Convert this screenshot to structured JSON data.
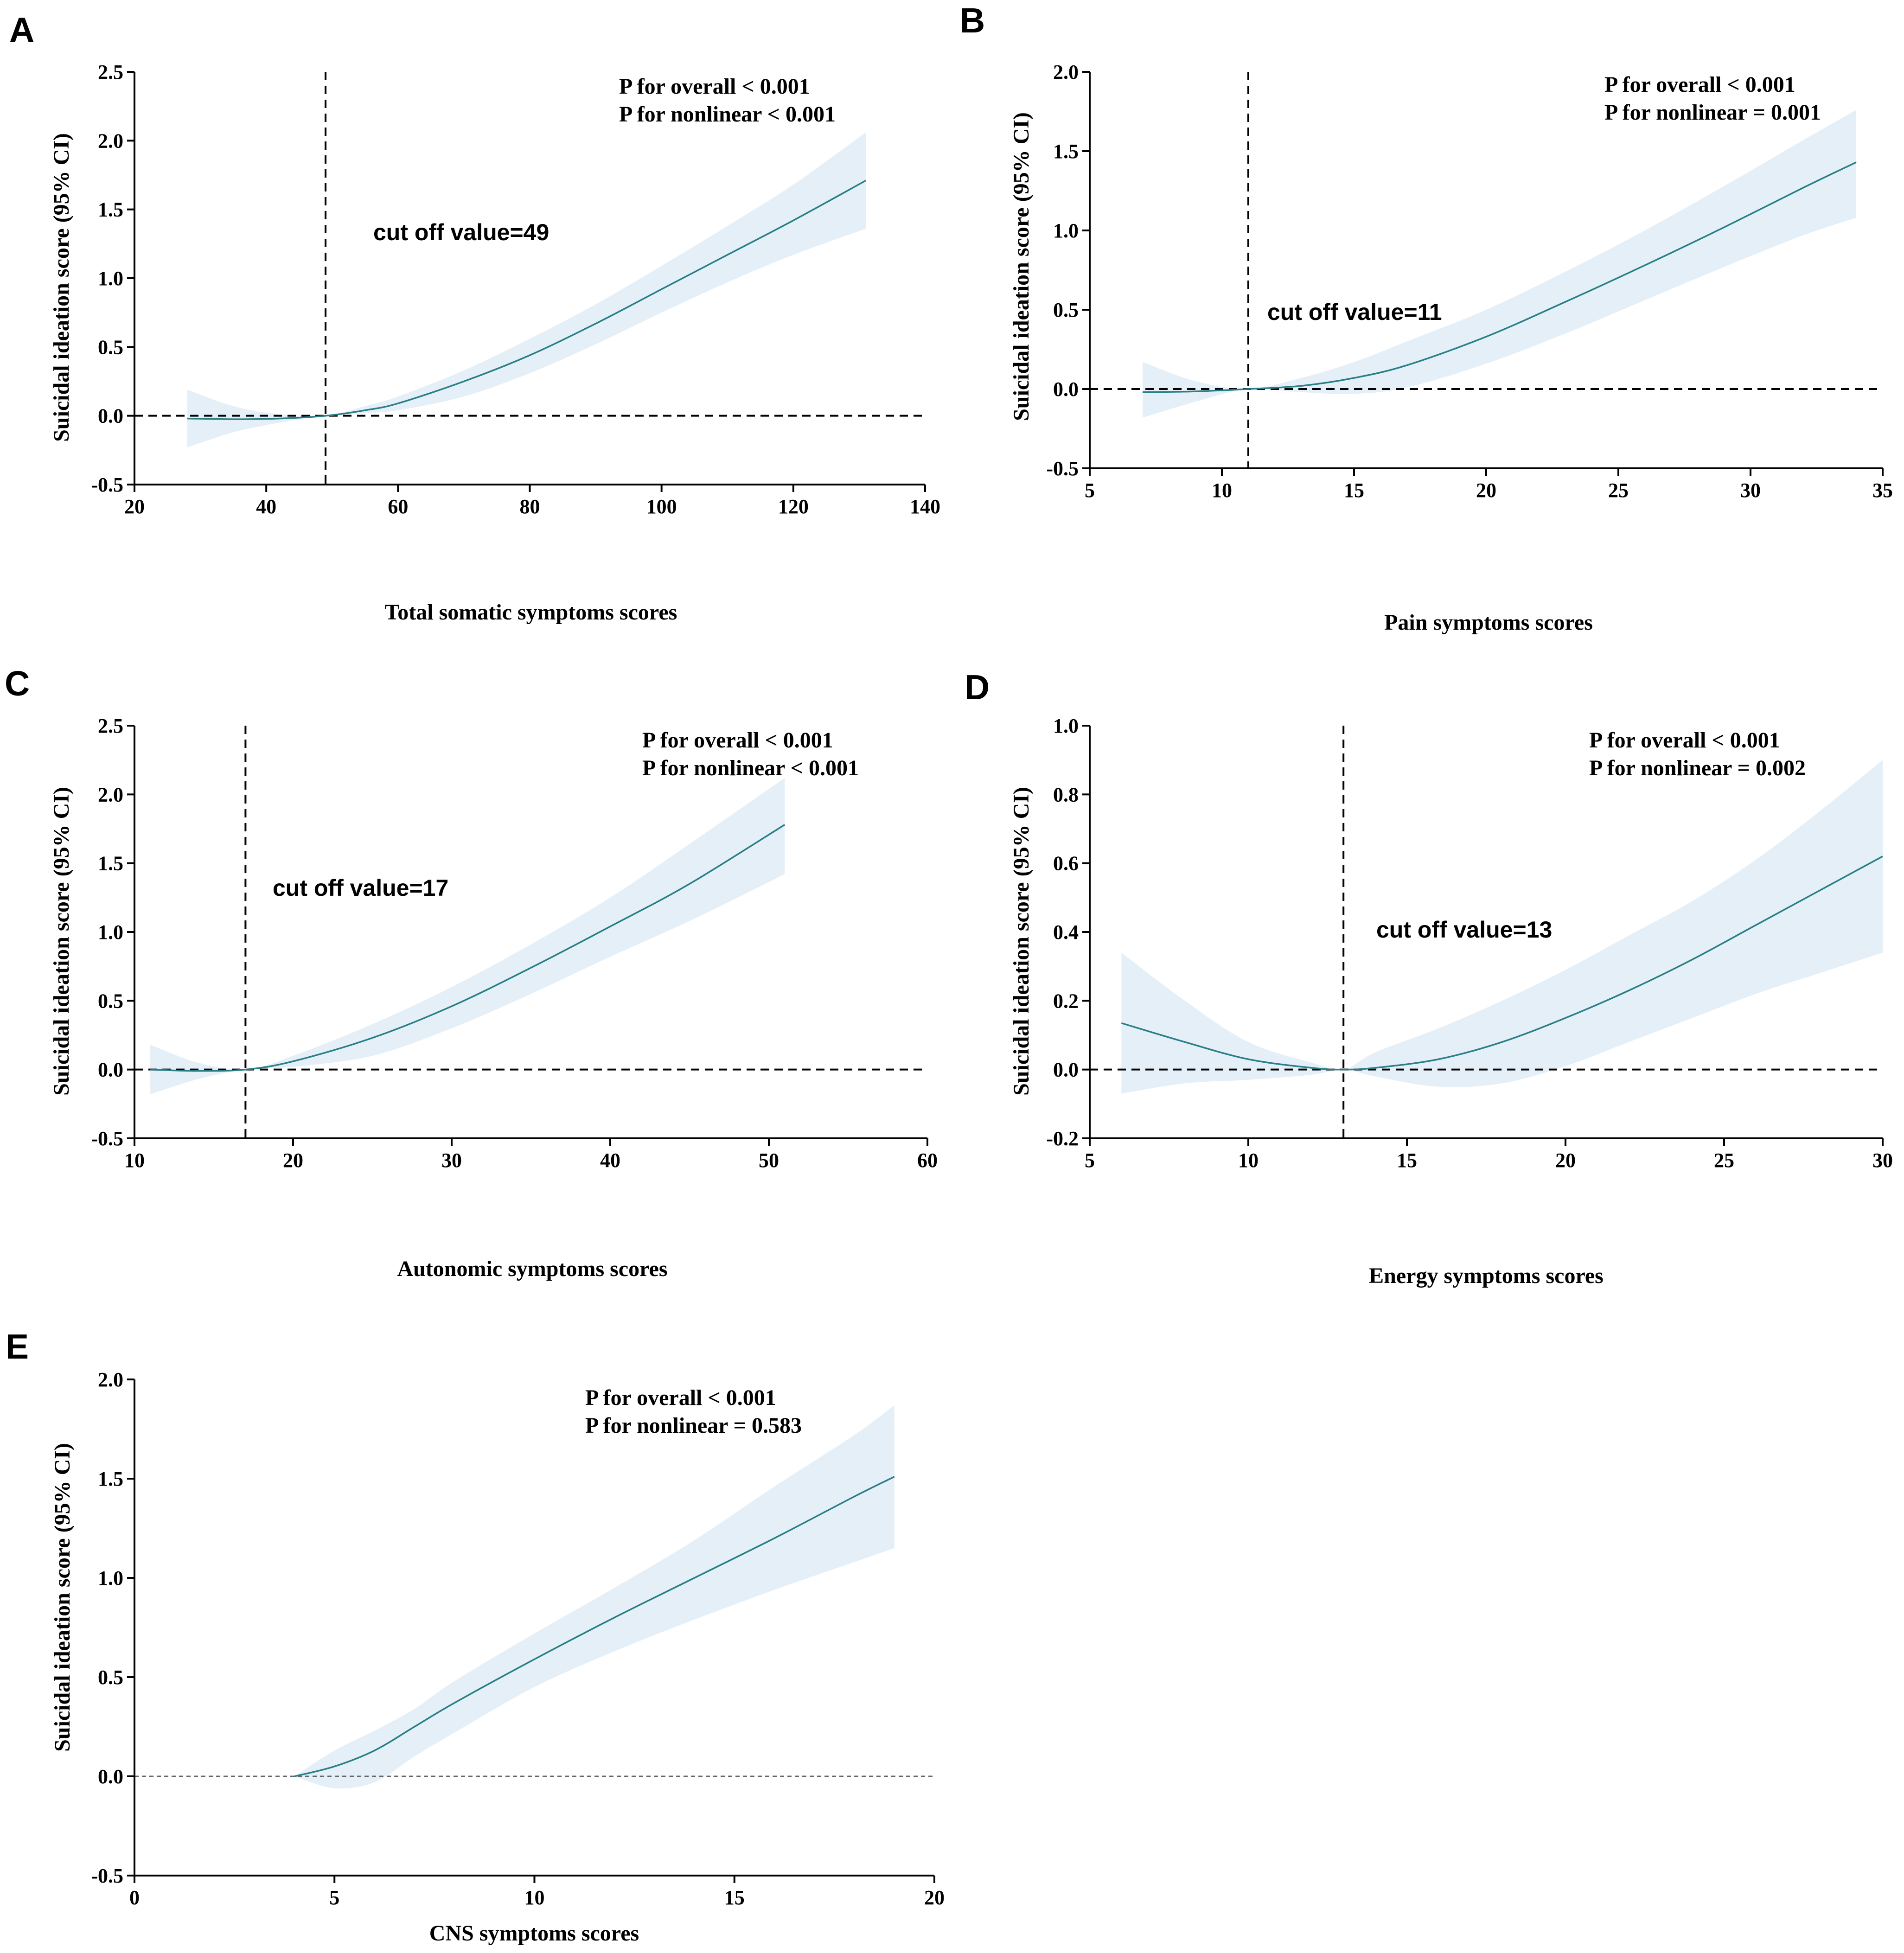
{
  "chart_data": [
    {
      "type": "line",
      "panel": "A",
      "title": "",
      "xlabel": "Total somatic symptoms scores",
      "ylabel": "Suicidal ideation score (95% CI)",
      "xlim": [
        20,
        140
      ],
      "ylim": [
        -0.5,
        2.5
      ],
      "xticks": [
        20,
        40,
        60,
        80,
        100,
        120,
        140
      ],
      "yticks": [
        -0.5,
        0.0,
        0.5,
        1.0,
        1.5,
        2.0,
        2.5
      ],
      "xtick_labels": [
        "20",
        "40",
        "60",
        "80",
        "100",
        "120",
        "140"
      ],
      "ytick_labels": [
        "-0.5",
        "0.0",
        "0.5",
        "1.0",
        "1.5",
        "2.0",
        "2.5"
      ],
      "reference_y": 0,
      "cutoff_x": 49,
      "cutoff_label": "cut off value=49",
      "p_overall": "P for overall < 0.001",
      "p_nonlinear": "P for nonlinear < 0.001",
      "series": [
        {
          "name": "estimate",
          "x": [
            28,
            35,
            42,
            49,
            55,
            60,
            70,
            80,
            90,
            100,
            110,
            120,
            131
          ],
          "y": [
            -0.02,
            -0.025,
            -0.02,
            0.0,
            0.04,
            0.09,
            0.25,
            0.44,
            0.67,
            0.92,
            1.17,
            1.42,
            1.71
          ],
          "lower": [
            -0.23,
            -0.12,
            -0.05,
            0.0,
            0.02,
            0.04,
            0.14,
            0.31,
            0.52,
            0.75,
            0.97,
            1.17,
            1.36
          ],
          "upper": [
            0.19,
            0.07,
            0.01,
            0.0,
            0.07,
            0.14,
            0.33,
            0.56,
            0.81,
            1.09,
            1.38,
            1.68,
            2.06
          ]
        }
      ]
    },
    {
      "type": "line",
      "panel": "B",
      "title": "",
      "xlabel": "Pain symptoms scores",
      "ylabel": "Suicidal ideation score (95% CI)",
      "xlim": [
        5,
        35
      ],
      "ylim": [
        -0.5,
        2.0
      ],
      "xticks": [
        5,
        10,
        15,
        20,
        25,
        30,
        35
      ],
      "yticks": [
        -0.5,
        0.0,
        0.5,
        1.0,
        1.5,
        2.0
      ],
      "xtick_labels": [
        "5",
        "10",
        "15",
        "20",
        "25",
        "30",
        "35"
      ],
      "ytick_labels": [
        "-0.5",
        "0.0",
        "0.5",
        "1.0",
        "1.5",
        "2.0"
      ],
      "reference_y": 0,
      "cutoff_x": 11,
      "cutoff_label": "cut off value=11",
      "p_overall": "P for overall < 0.001",
      "p_nonlinear": "P for nonlinear = 0.001",
      "series": [
        {
          "name": "estimate",
          "x": [
            7,
            9,
            11,
            13,
            15,
            17,
            20,
            23,
            26,
            29,
            32,
            34
          ],
          "y": [
            -0.02,
            -0.015,
            0.0,
            0.02,
            0.07,
            0.15,
            0.33,
            0.55,
            0.78,
            1.02,
            1.27,
            1.43
          ],
          "lower": [
            -0.18,
            -0.08,
            0.0,
            -0.02,
            -0.03,
            0.01,
            0.16,
            0.35,
            0.56,
            0.77,
            0.97,
            1.08
          ],
          "upper": [
            0.17,
            0.05,
            0.0,
            0.07,
            0.17,
            0.3,
            0.5,
            0.74,
            1.0,
            1.28,
            1.57,
            1.76
          ]
        }
      ]
    },
    {
      "type": "line",
      "panel": "C",
      "title": "",
      "xlabel": "Autonomic symptoms scores",
      "ylabel": "Suicidal ideation score (95% CI)",
      "xlim": [
        10,
        60
      ],
      "ylim": [
        -0.5,
        2.5
      ],
      "xticks": [
        10,
        20,
        30,
        40,
        50,
        60
      ],
      "yticks": [
        -0.5,
        0.0,
        0.5,
        1.0,
        1.5,
        2.0,
        2.5
      ],
      "xtick_labels": [
        "10",
        "20",
        "30",
        "40",
        "50",
        "60"
      ],
      "ytick_labels": [
        "-0.5",
        "0.0",
        "0.5",
        "1.0",
        "1.5",
        "2.0",
        "2.5"
      ],
      "reference_y": 0,
      "cutoff_x": 17,
      "cutoff_label": "cut off value=17",
      "p_overall": "P for overall < 0.001",
      "p_nonlinear": "P for nonlinear < 0.001",
      "series": [
        {
          "name": "estimate",
          "x": [
            11,
            14,
            17,
            20,
            25,
            30,
            35,
            40,
            45,
            51
          ],
          "y": [
            0.0,
            -0.01,
            0.0,
            0.06,
            0.23,
            0.46,
            0.74,
            1.04,
            1.35,
            1.78
          ],
          "lower": [
            -0.18,
            -0.07,
            0.0,
            0.02,
            0.1,
            0.3,
            0.55,
            0.82,
            1.08,
            1.42
          ],
          "upper": [
            0.18,
            0.05,
            0.0,
            0.1,
            0.33,
            0.6,
            0.91,
            1.25,
            1.64,
            2.12
          ]
        }
      ]
    },
    {
      "type": "line",
      "panel": "D",
      "title": "",
      "xlabel": "Energy symptoms scores",
      "ylabel": "Suicidal ideation score (95% CI)",
      "xlim": [
        5,
        30
      ],
      "ylim": [
        -0.2,
        1.0
      ],
      "xticks": [
        5,
        10,
        15,
        20,
        25,
        30
      ],
      "yticks": [
        -0.2,
        0.0,
        0.2,
        0.4,
        0.6,
        0.8,
        1.0
      ],
      "xtick_labels": [
        "5",
        "10",
        "15",
        "20",
        "25",
        "30"
      ],
      "ytick_labels": [
        "-0.2",
        "0.0",
        "0.2",
        "0.4",
        "0.6",
        "0.8",
        "1.0"
      ],
      "reference_y": 0,
      "cutoff_x": 13,
      "cutoff_label": "cut off value=13",
      "p_overall": "P for overall < 0.001",
      "p_nonlinear": "P for nonlinear = 0.002",
      "series": [
        {
          "name": "estimate",
          "x": [
            6,
            8,
            10,
            12,
            13,
            14,
            16,
            18,
            20,
            22,
            24,
            26,
            28,
            30
          ],
          "y": [
            0.135,
            0.08,
            0.03,
            0.005,
            0.0,
            0.005,
            0.03,
            0.08,
            0.15,
            0.23,
            0.32,
            0.42,
            0.52,
            0.62
          ],
          "lower": [
            -0.07,
            -0.04,
            -0.03,
            -0.015,
            0.0,
            -0.02,
            -0.05,
            -0.04,
            0.01,
            0.08,
            0.15,
            0.22,
            0.28,
            0.34
          ],
          "upper": [
            0.34,
            0.2,
            0.08,
            0.02,
            0.0,
            0.05,
            0.12,
            0.2,
            0.29,
            0.39,
            0.49,
            0.61,
            0.75,
            0.9
          ]
        }
      ]
    },
    {
      "type": "line",
      "panel": "E",
      "title": "",
      "xlabel": "CNS symptoms scores",
      "ylabel": "Suicidal ideation score (95% CI)",
      "xlim": [
        0,
        20
      ],
      "ylim": [
        -0.5,
        2.0
      ],
      "xticks": [
        0,
        5,
        10,
        15,
        20
      ],
      "yticks": [
        -0.5,
        0.0,
        0.5,
        1.0,
        1.5,
        2.0
      ],
      "xtick_labels": [
        "0",
        "5",
        "10",
        "15",
        "20"
      ],
      "ytick_labels": [
        "-0.5",
        "0.0",
        "0.5",
        "1.0",
        "1.5",
        "2.0"
      ],
      "reference_y": 0,
      "cutoff_x": null,
      "cutoff_label": "",
      "p_overall": "P for overall < 0.001",
      "p_nonlinear": "P for nonlinear = 0.583",
      "series": [
        {
          "name": "estimate",
          "x": [
            4,
            5,
            6,
            7,
            8,
            10,
            12,
            14,
            16,
            18,
            19
          ],
          "y": [
            0.0,
            0.05,
            0.13,
            0.25,
            0.37,
            0.59,
            0.8,
            1.0,
            1.2,
            1.41,
            1.51
          ],
          "lower": [
            0.0,
            -0.06,
            -0.03,
            0.1,
            0.22,
            0.45,
            0.63,
            0.79,
            0.94,
            1.08,
            1.15
          ],
          "upper": [
            0.0,
            0.13,
            0.23,
            0.34,
            0.48,
            0.72,
            0.95,
            1.19,
            1.46,
            1.72,
            1.87
          ]
        }
      ]
    }
  ],
  "colors": {
    "line": "#2a7f87",
    "band": "#e4eff7",
    "axis": "#000000",
    "reference": "#000000",
    "reference_light": "#666666"
  }
}
